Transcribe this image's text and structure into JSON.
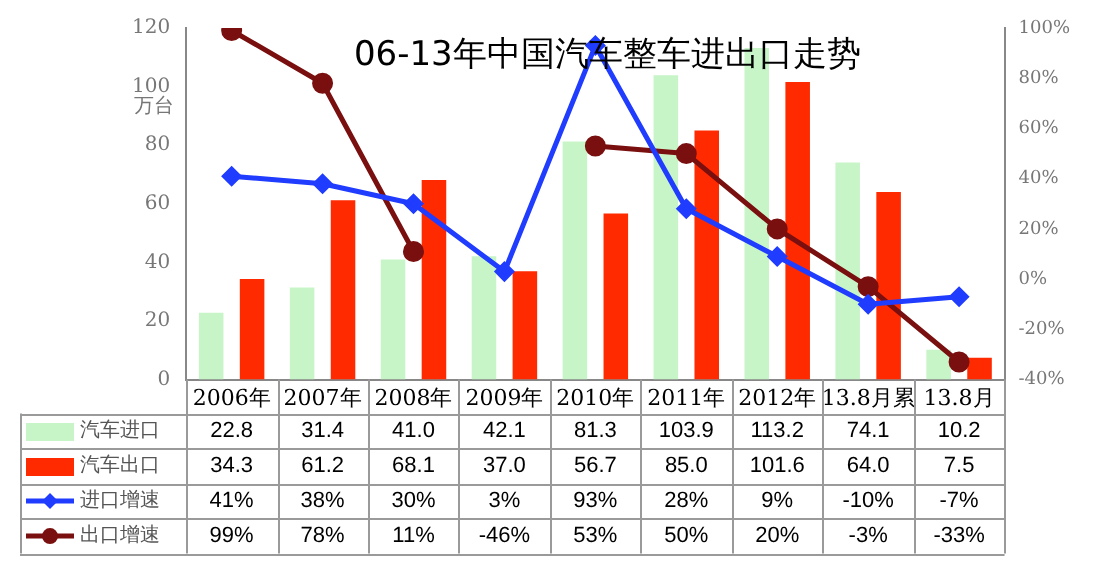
{
  "chart_data": {
    "type": "bar",
    "title": "06-13年中国汽车整车进出口走势",
    "ylabel": "万台",
    "categories": [
      "2006年",
      "2007年",
      "2008年",
      "2009年",
      "2010年",
      "2011年",
      "2012年",
      "13.8月累",
      "13.8月"
    ],
    "series": [
      {
        "name": "汽车进口",
        "color": "#c8f5c8",
        "values": [
          22.8,
          31.4,
          41.0,
          42.1,
          81.3,
          103.9,
          113.2,
          74.1,
          10.2
        ],
        "value_labels": [
          "22.8",
          "31.4",
          "41.0",
          "42.1",
          "81.3",
          "103.9",
          "113.2",
          "74.1",
          "10.2"
        ]
      },
      {
        "name": "汽车出口",
        "color": "#ff2a00",
        "values": [
          34.3,
          61.2,
          68.1,
          37.0,
          56.7,
          85.0,
          101.6,
          64.0,
          7.5
        ],
        "value_labels": [
          "34.3",
          "61.2",
          "68.1",
          "37.0",
          "56.7",
          "85.0",
          "101.6",
          "64.0",
          "7.5"
        ]
      },
      {
        "name": "进口增速",
        "type": "line",
        "axis": "y2",
        "marker": "diamond",
        "color": "#1f3cff",
        "values": [
          41,
          38,
          30,
          3,
          93,
          28,
          9,
          -10,
          -7
        ],
        "value_labels": [
          "41%",
          "38%",
          "30%",
          "3%",
          "93%",
          "28%",
          "9%",
          "-10%",
          "-7%"
        ]
      },
      {
        "name": "出口增速",
        "type": "line",
        "axis": "y2",
        "marker": "circle",
        "color": "#7a0f0f",
        "values": [
          99,
          78,
          11,
          null,
          53,
          50,
          20,
          -3,
          -33
        ],
        "value_labels": [
          "99%",
          "78%",
          "11%",
          "-46%",
          "53%",
          "50%",
          "20%",
          "-3%",
          "-33%"
        ]
      }
    ],
    "ylim": [
      0,
      120
    ],
    "yticks": [
      0,
      20,
      40,
      60,
      80,
      100,
      120
    ],
    "y2lim": [
      -40,
      100
    ],
    "y2ticks": [
      {
        "value": -40,
        "label": "-40%"
      },
      {
        "value": -20,
        "label": "-20%"
      },
      {
        "value": 0,
        "label": "0%"
      },
      {
        "value": 20,
        "label": "20%"
      },
      {
        "value": 40,
        "label": "40%"
      },
      {
        "value": 60,
        "label": "60%"
      },
      {
        "value": 80,
        "label": "80%"
      },
      {
        "value": 100,
        "label": "100%"
      }
    ],
    "grid": false,
    "legend": "bottom left"
  }
}
